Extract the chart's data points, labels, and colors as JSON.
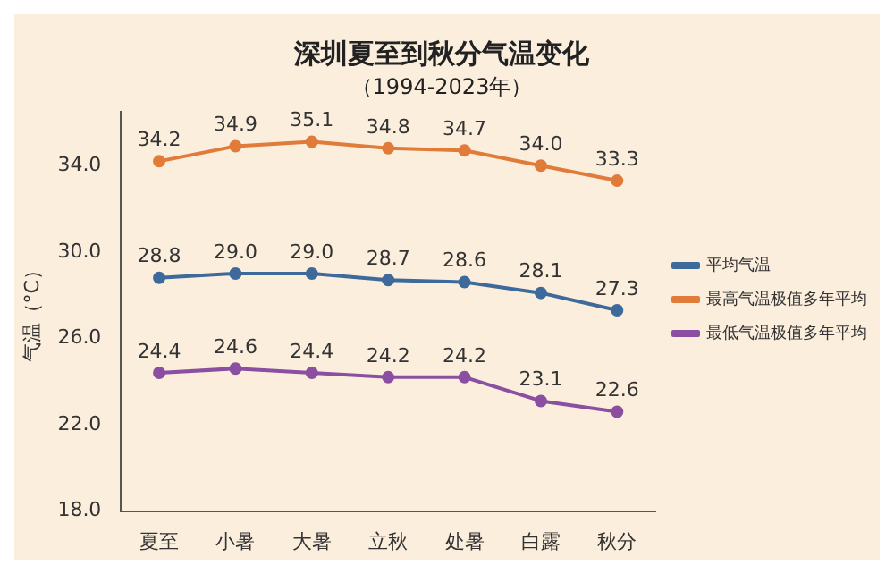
{
  "chart_data": {
    "type": "line",
    "title": "深圳夏至到秋分气温变化",
    "subtitle": "（1994-2023年）",
    "ylabel": "气温（°C）",
    "categories": [
      "夏至",
      "小暑",
      "大暑",
      "立秋",
      "处暑",
      "白露",
      "秋分"
    ],
    "series": [
      {
        "name": "平均气温",
        "color": "#3d6a9a",
        "values": [
          28.8,
          29.0,
          29.0,
          28.7,
          28.6,
          28.1,
          27.3
        ],
        "value_labels": [
          "28.8",
          "29.0",
          "29.0",
          "28.7",
          "28.6",
          "28.1",
          "27.3"
        ]
      },
      {
        "name": "最高气温极值多年平均",
        "color": "#e07b3a",
        "values": [
          34.2,
          34.9,
          35.1,
          34.8,
          34.7,
          34.0,
          33.3
        ],
        "value_labels": [
          "34.2",
          "34.9",
          "35.1",
          "34.8",
          "34.7",
          "34.0",
          "33.3"
        ]
      },
      {
        "name": "最低气温极值多年平均",
        "color": "#8a4fa0",
        "values": [
          24.4,
          24.6,
          24.4,
          24.2,
          24.2,
          23.1,
          22.6
        ],
        "value_labels": [
          "24.4",
          "24.6",
          "24.4",
          "24.2",
          "24.2",
          "23.1",
          "22.6"
        ]
      }
    ],
    "ylim": [
      18,
      36.5
    ],
    "yticks": [
      {
        "value": 18,
        "label": "18.0"
      },
      {
        "value": 22,
        "label": "22.0"
      },
      {
        "value": 26,
        "label": "26.0"
      },
      {
        "value": 30,
        "label": "30.0"
      },
      {
        "value": 34,
        "label": "34.0"
      }
    ],
    "grid": false,
    "legend": "right",
    "marker": "circle",
    "line_style": "solid"
  }
}
